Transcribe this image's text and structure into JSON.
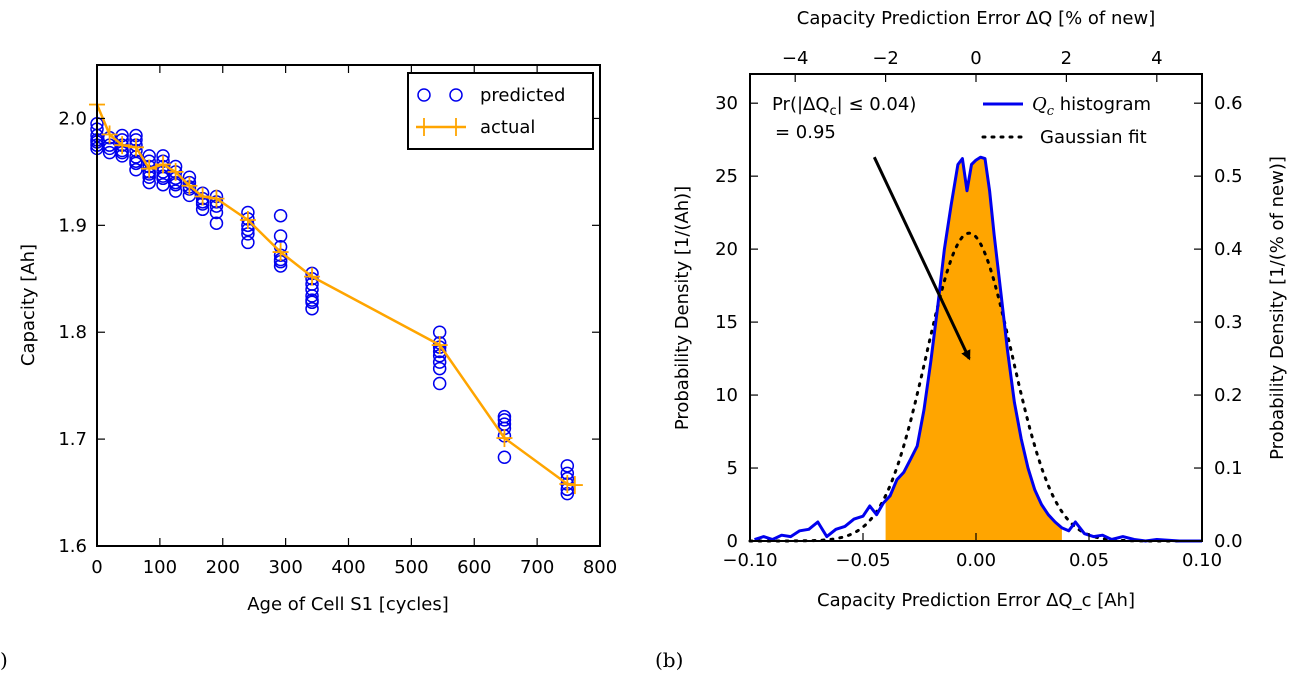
{
  "figure": {
    "panel_a_label": ")",
    "panel_b_label": "(b)"
  },
  "chart_data": [
    {
      "type": "scatter",
      "panel": "a",
      "xlabel": "Age of Cell S1 [cycles]",
      "ylabel": "Capacity [Ah]",
      "xlim": [
        0,
        800
      ],
      "ylim": [
        1.6,
        2.05
      ],
      "xticks": [
        "0",
        "100",
        "200",
        "300",
        "400",
        "500",
        "600",
        "700",
        "800"
      ],
      "yticks": [
        "1.6",
        "1.7",
        "1.8",
        "1.9",
        "2.0"
      ],
      "grid": false,
      "legend": {
        "placement": "top-right",
        "entries": [
          "predicted",
          "actual"
        ]
      },
      "colors": {
        "predicted": "#0000ee",
        "actual": "#ffa500"
      },
      "series": [
        {
          "name": "predicted",
          "marker": "open-circle",
          "groups": [
            {
              "x": 0,
              "y": [
                1.972,
                1.978,
                1.984,
                1.99,
                1.995,
                1.975,
                1.98
              ]
            },
            {
              "x": 20,
              "y": [
                1.968,
                1.975,
                1.982,
                1.972
              ]
            },
            {
              "x": 40,
              "y": [
                1.965,
                1.97,
                1.975,
                1.98,
                1.984,
                1.968
              ]
            },
            {
              "x": 62,
              "y": [
                1.952,
                1.958,
                1.964,
                1.97,
                1.975,
                1.98,
                1.984,
                1.96
              ]
            },
            {
              "x": 83,
              "y": [
                1.94,
                1.945,
                1.95,
                1.955,
                1.96,
                1.965,
                1.948
              ]
            },
            {
              "x": 105,
              "y": [
                1.938,
                1.944,
                1.95,
                1.955,
                1.96,
                1.965,
                1.946
              ]
            },
            {
              "x": 125,
              "y": [
                1.932,
                1.938,
                1.944,
                1.95,
                1.955,
                1.94
              ]
            },
            {
              "x": 147,
              "y": [
                1.928,
                1.934,
                1.94,
                1.945,
                1.936
              ]
            },
            {
              "x": 168,
              "y": [
                1.915,
                1.92,
                1.925,
                1.93,
                1.922
              ]
            },
            {
              "x": 190,
              "y": [
                1.902,
                1.912,
                1.918,
                1.922,
                1.927
              ]
            },
            {
              "x": 240,
              "y": [
                1.884,
                1.892,
                1.9,
                1.906,
                1.912,
                1.896
              ]
            },
            {
              "x": 292,
              "y": [
                1.862,
                1.866,
                1.872,
                1.88,
                1.89,
                1.909,
                1.868
              ]
            },
            {
              "x": 342,
              "y": [
                1.822,
                1.828,
                1.834,
                1.84,
                1.845,
                1.85,
                1.855,
                1.83
              ]
            },
            {
              "x": 545,
              "y": [
                1.752,
                1.766,
                1.772,
                1.778,
                1.782,
                1.786,
                1.79,
                1.8
              ]
            },
            {
              "x": 648,
              "y": [
                1.683,
                1.703,
                1.71,
                1.714,
                1.718,
                1.721
              ]
            },
            {
              "x": 748,
              "y": [
                1.649,
                1.653,
                1.658,
                1.663,
                1.668,
                1.675
              ]
            }
          ]
        },
        {
          "name": "actual",
          "marker": "plus",
          "x": [
            0,
            20,
            40,
            62,
            83,
            105,
            125,
            147,
            168,
            190,
            240,
            292,
            342,
            545,
            648,
            748,
            760
          ],
          "y": [
            2.013,
            1.985,
            1.975,
            1.973,
            1.953,
            1.957,
            1.95,
            1.937,
            1.927,
            1.925,
            1.905,
            1.875,
            1.852,
            1.788,
            1.701,
            1.658,
            1.657
          ]
        }
      ]
    },
    {
      "type": "area",
      "panel": "b",
      "xlabel": "Capacity Prediction Error ΔQ_c [Ah]",
      "ylabel": "Probability Density [1/(Ah)]",
      "ylabel_right": "Probability Density [1/(% of new)]",
      "xlabel_top": "Capacity Prediction Error ΔQ [% of new]",
      "xlim": [
        -0.1,
        0.1
      ],
      "ylim": [
        0,
        32
      ],
      "top_xlim": [
        -5,
        5
      ],
      "right_ylim": [
        0,
        0.64
      ],
      "xticks": [
        "−0.10",
        "−0.05",
        "0.00",
        "0.05",
        "0.10"
      ],
      "yticks": [
        "0",
        "5",
        "10",
        "15",
        "20",
        "25",
        "30"
      ],
      "top_xticks": [
        "−4",
        "−2",
        "0",
        "2",
        "4"
      ],
      "right_yticks": [
        "0.0",
        "0.1",
        "0.2",
        "0.3",
        "0.4",
        "0.5",
        "0.6"
      ],
      "grid": false,
      "legend": {
        "placement": "top-right",
        "entries": [
          "Q_c histogram",
          "Gaussian fit"
        ]
      },
      "colors": {
        "histogram": "#0000ee",
        "fill": "#ffa500",
        "gaussian": "#000000",
        "arrow": "#000000"
      },
      "annotation": {
        "prefix": "Pr(|ΔQ",
        "sub": "c",
        "suffix": "| ≤ 0.04)",
        "line2": "= 0.95",
        "arrow_from": [
          -0.045,
          26.3
        ],
        "arrow_to": [
          -0.003,
          12.5
        ]
      },
      "fill_range": [
        -0.04,
        0.038
      ],
      "series": [
        {
          "name": "Q_c histogram",
          "x": [
            -0.098,
            -0.094,
            -0.09,
            -0.086,
            -0.082,
            -0.078,
            -0.074,
            -0.07,
            -0.066,
            -0.062,
            -0.058,
            -0.054,
            -0.05,
            -0.047,
            -0.044,
            -0.041,
            -0.038,
            -0.035,
            -0.032,
            -0.029,
            -0.026,
            -0.023,
            -0.02,
            -0.017,
            -0.014,
            -0.011,
            -0.008,
            -0.006,
            -0.004,
            -0.002,
            0.0,
            0.002,
            0.004,
            0.006,
            0.008,
            0.011,
            0.014,
            0.017,
            0.02,
            0.023,
            0.026,
            0.029,
            0.032,
            0.035,
            0.038,
            0.041,
            0.044,
            0.048,
            0.052,
            0.056,
            0.06,
            0.065,
            0.07,
            0.075,
            0.08,
            0.09,
            0.1
          ],
          "y": [
            0.1,
            0.3,
            0.1,
            0.4,
            0.3,
            0.7,
            0.8,
            1.3,
            0.3,
            0.8,
            1.0,
            1.5,
            1.7,
            2.4,
            1.8,
            2.6,
            3.1,
            4.2,
            4.7,
            5.6,
            6.5,
            9.0,
            12.3,
            16.0,
            20.0,
            23.0,
            25.8,
            26.2,
            24.0,
            25.8,
            26.1,
            26.3,
            26.2,
            24.0,
            21.0,
            17.0,
            13.0,
            9.5,
            7.0,
            5.0,
            3.5,
            2.5,
            1.8,
            1.3,
            0.9,
            0.7,
            1.3,
            0.5,
            0.3,
            0.4,
            0.1,
            0.3,
            0.1,
            0.0,
            0.1,
            0.0,
            0.0
          ]
        },
        {
          "name": "Gaussian fit",
          "mean": -0.003,
          "sigma": 0.0189,
          "peak": 21.1
        }
      ]
    }
  ]
}
